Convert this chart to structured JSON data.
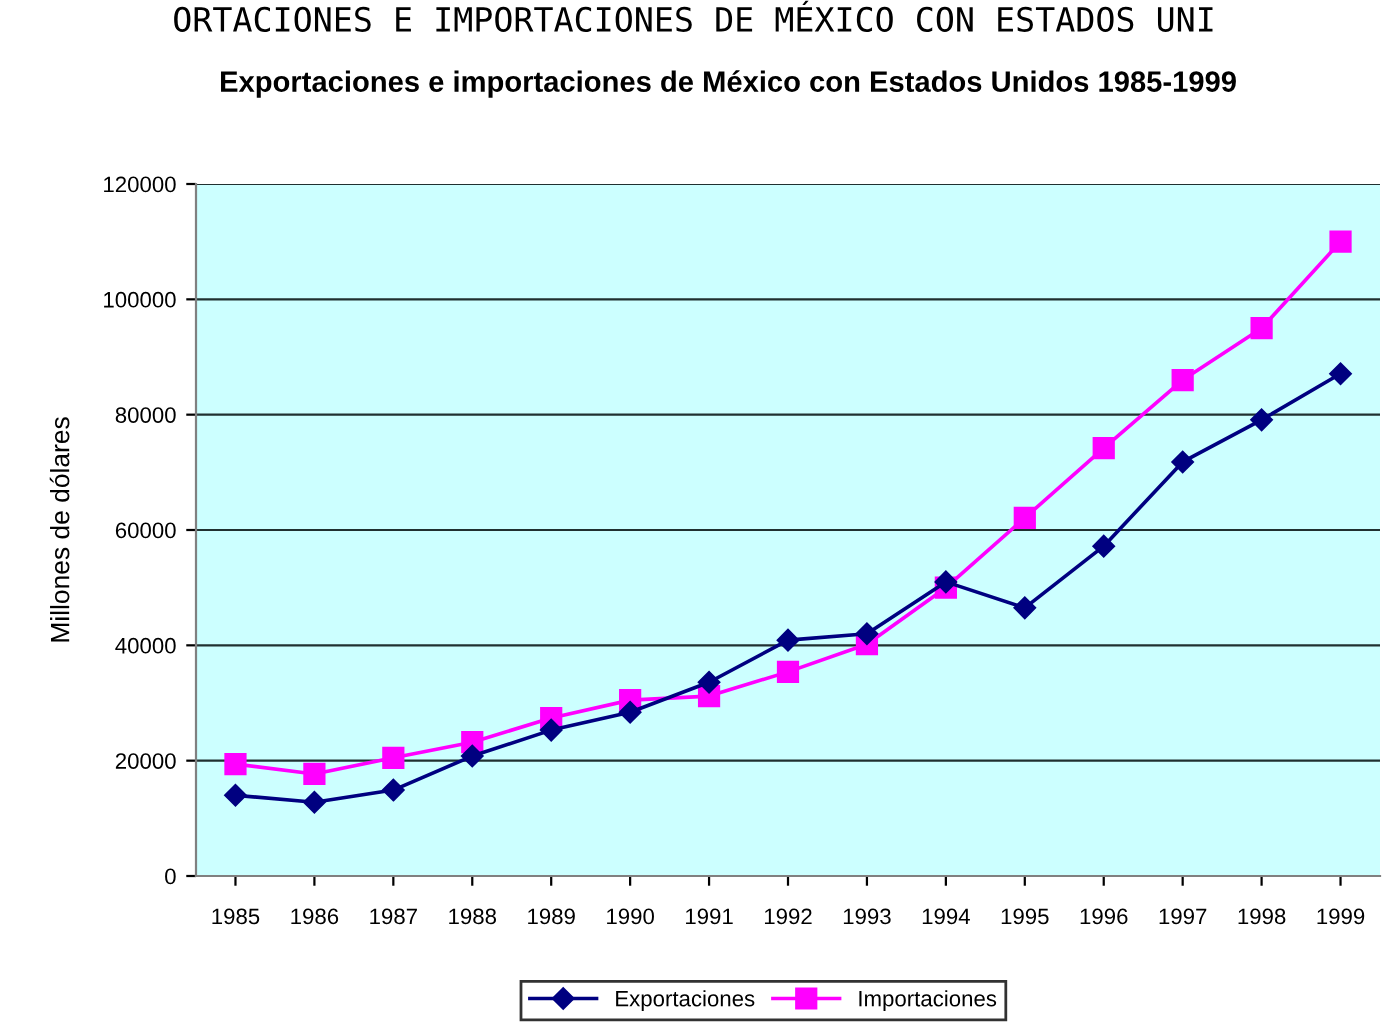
{
  "chart_data": {
    "type": "line",
    "title": "Exportaciones e importaciones de México con Estados Unidos 1985-1999",
    "ylabel": "Millones de dólares",
    "annotations": [
      "ORTACIONES E IMPORTACIONES DE MÉXICO CON ESTADOS UNI"
    ],
    "categories": [
      "1985",
      "1986",
      "1987",
      "1988",
      "1989",
      "1990",
      "1991",
      "1992",
      "1993",
      "1994",
      "1995",
      "1996",
      "1997",
      "1998",
      "1999"
    ],
    "series": [
      {
        "name": "Exportaciones",
        "color": "#000080",
        "marker": "diamond",
        "values": [
          14000,
          12800,
          14900,
          20800,
          25300,
          28400,
          33600,
          40900,
          42000,
          51000,
          46500,
          57200,
          71800,
          79100,
          87100
        ]
      },
      {
        "name": "Importaciones",
        "color": "#ff00ff",
        "marker": "square",
        "values": [
          19400,
          17700,
          20500,
          23200,
          27400,
          30500,
          31200,
          35400,
          40200,
          50000,
          62100,
          74200,
          86000,
          95000,
          110000
        ]
      }
    ],
    "ylim": [
      0,
      120000
    ],
    "yticks": [
      0,
      20000,
      40000,
      60000,
      80000,
      100000,
      120000
    ],
    "grid": "y",
    "legend": "bottom"
  }
}
